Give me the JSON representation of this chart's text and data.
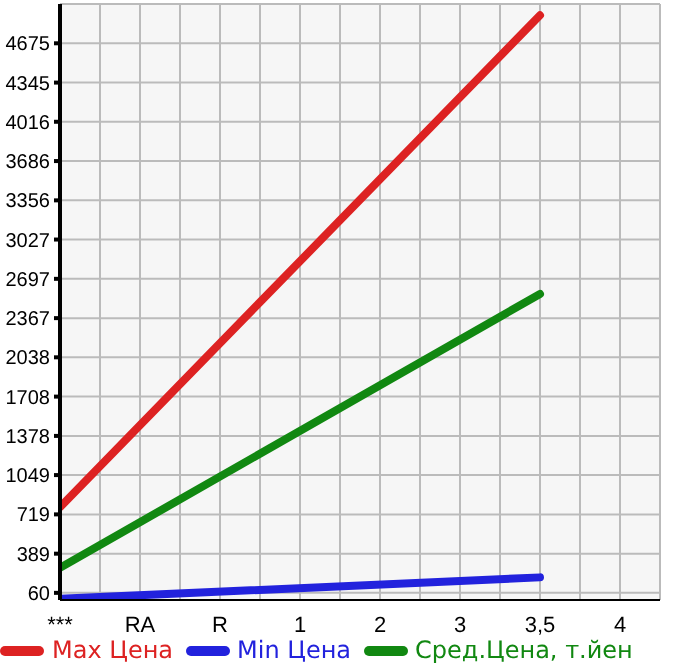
{
  "chart_data": {
    "type": "line",
    "categories": [
      "***",
      "RA",
      "R",
      "1",
      "2",
      "3",
      "3,5",
      "4"
    ],
    "series": [
      {
        "name": "Max Цена",
        "color": "#dd2222",
        "values": [
          780,
          null,
          null,
          null,
          null,
          null,
          4910,
          null
        ]
      },
      {
        "name": "Min Цена",
        "color": "#2222dd",
        "values": [
          10,
          null,
          null,
          null,
          null,
          null,
          190,
          null
        ]
      },
      {
        "name": "Сред.Цена, т.йен",
        "color": "#118811",
        "values": [
          270,
          null,
          null,
          null,
          null,
          null,
          2570,
          null
        ]
      }
    ],
    "ylim": [
      0,
      5005
    ],
    "yticks": [
      60,
      389,
      719,
      1049,
      1378,
      1708,
      2038,
      2367,
      2697,
      3027,
      3356,
      3686,
      4016,
      4345,
      4675
    ],
    "grid": true,
    "legend": "bottom",
    "marker": "none",
    "line_style": "solid"
  }
}
